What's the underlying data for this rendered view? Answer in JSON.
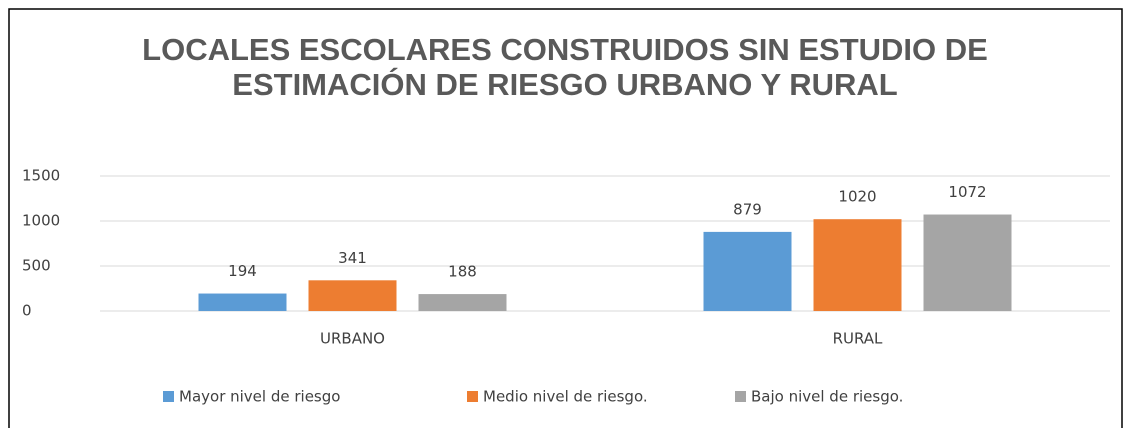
{
  "chart_data": {
    "type": "bar",
    "title": "LOCALES ESCOLARES CONSTRUIDOS SIN ESTUDIO DE ESTIMACIÓN DE RIESGO URBANO Y RURAL",
    "categories": [
      "URBANO",
      "RURAL"
    ],
    "series": [
      {
        "name": "Mayor nivel de riesgo",
        "color": "#5b9bd5",
        "values": [
          194,
          879
        ]
      },
      {
        "name": "Medio nivel de riesgo.",
        "color": "#ed7d31",
        "values": [
          341,
          1020
        ]
      },
      {
        "name": "Bajo nivel de riesgo.",
        "color": "#a5a5a5",
        "values": [
          188,
          1072
        ]
      }
    ],
    "ylim": [
      0,
      1500
    ],
    "yticks": [
      0,
      500,
      1000,
      1500
    ],
    "grid": true,
    "legend": "bottom"
  }
}
